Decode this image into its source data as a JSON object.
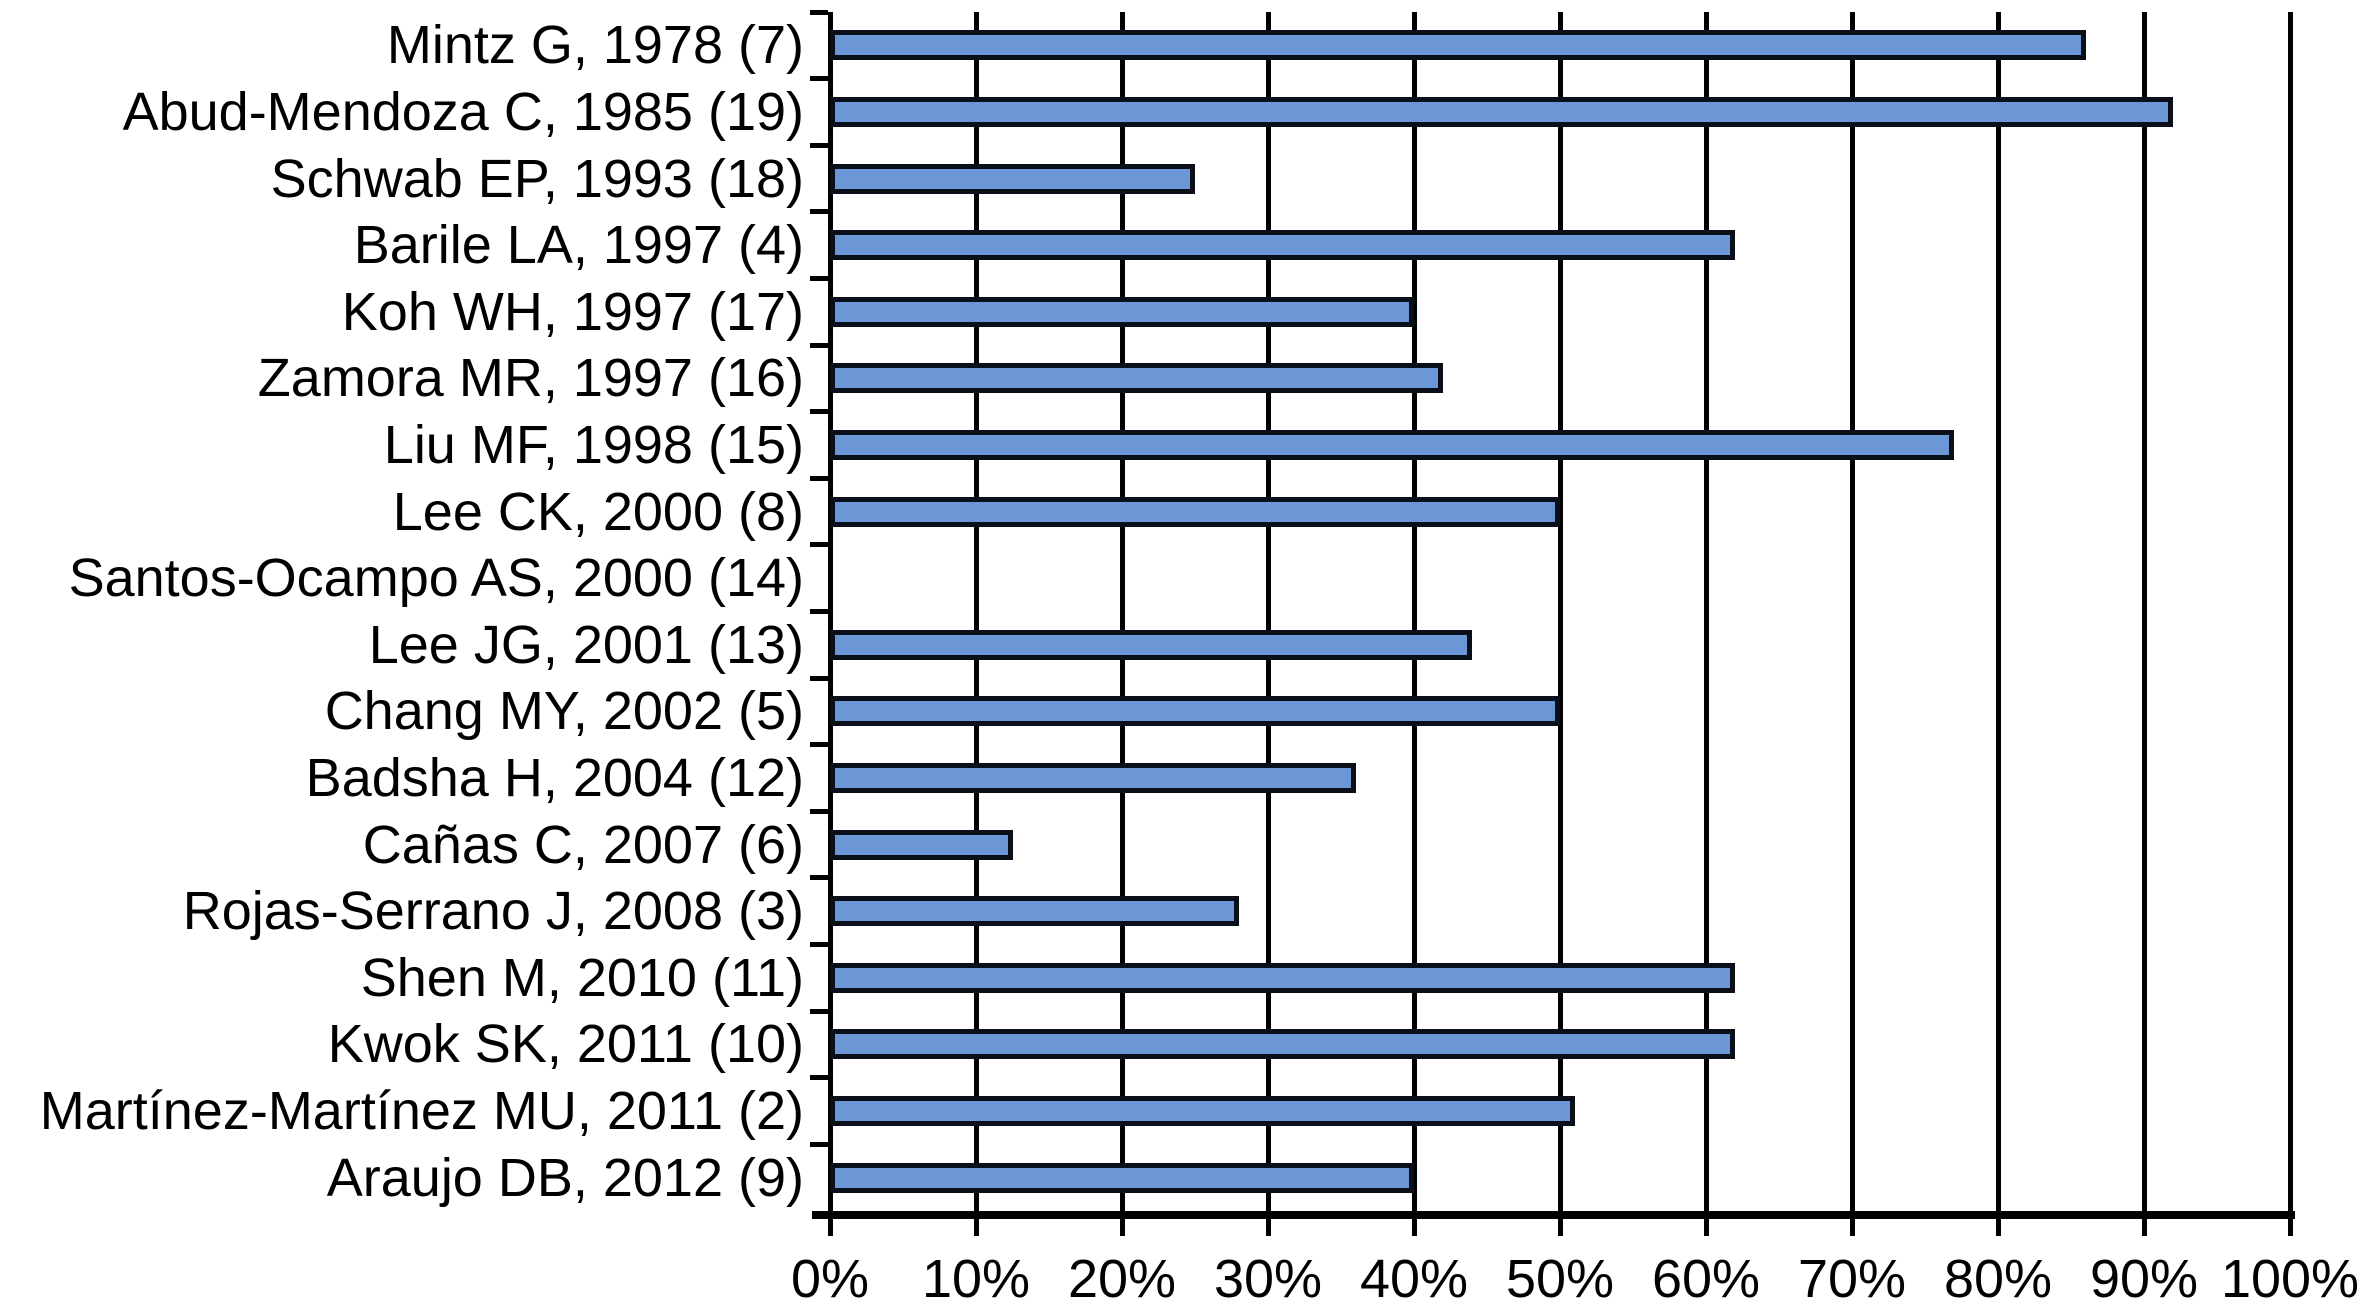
{
  "chart_data": {
    "type": "bar",
    "orientation": "horizontal",
    "title": "",
    "xlabel": "",
    "ylabel": "",
    "categories": [
      "Mintz G, 1978 (7)",
      "Abud-Mendoza C, 1985 (19)",
      "Schwab EP, 1993 (18)",
      "Barile LA, 1997 (4)",
      "Koh WH, 1997 (17)",
      "Zamora MR, 1997 (16)",
      "Liu MF, 1998 (15)",
      "Lee CK, 2000 (8)",
      "Santos-Ocampo AS, 2000 (14)",
      "Lee JG, 2001 (13)",
      "Chang MY, 2002 (5)",
      "Badsha H, 2004 (12)",
      "Cañas C, 2007 (6)",
      "Rojas-Serrano J, 2008 (3)",
      "Shen M, 2010 (11)",
      "Kwok SK, 2011 (10)",
      "Martínez-Martínez MU, 2011 (2)",
      "Araujo DB, 2012 (9)"
    ],
    "values": [
      86,
      92,
      25,
      62,
      40,
      42,
      77,
      50,
      0,
      44,
      50,
      36,
      12.5,
      28,
      62,
      62,
      51,
      40
    ],
    "value_unit": "%",
    "xlim": [
      0,
      100
    ],
    "xtick_labels": [
      "0%",
      "10%",
      "20%",
      "30%",
      "40%",
      "50%",
      "60%",
      "70%",
      "80%",
      "90%",
      "100%"
    ],
    "grid": "vertical-gridlines-on",
    "legend": "none",
    "colors": {
      "bar_fill": "#6b97d6",
      "bar_border": "#0b0f1a",
      "axis": "#000000",
      "text": "#000000",
      "background": "#ffffff"
    }
  }
}
